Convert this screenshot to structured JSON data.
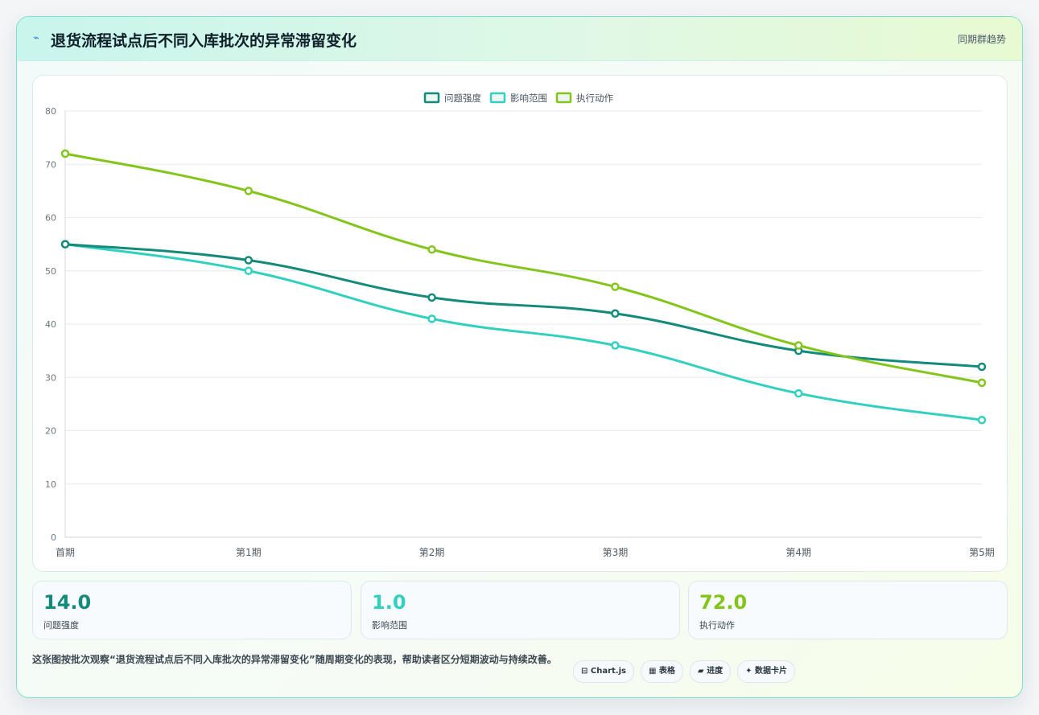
{
  "header": {
    "icon": "lightning-icon",
    "icon_glyph": "⌁",
    "title": "退货流程试点后不同入库批次的异常滞留变化",
    "subtitle": "同期群趋势"
  },
  "chart_data": {
    "type": "line",
    "title": "",
    "xlabel": "",
    "ylabel": "",
    "categories": [
      "首期",
      "第1期",
      "第2期",
      "第3期",
      "第4期",
      "第5期"
    ],
    "ylim": [
      0,
      80
    ],
    "yticks": [
      0,
      10,
      20,
      30,
      40,
      50,
      60,
      70,
      80
    ],
    "grid": true,
    "legend_position": "top-center",
    "series": [
      {
        "name": "问题强度",
        "color": "#138a7a",
        "values": [
          55,
          52,
          45,
          42,
          35,
          32
        ]
      },
      {
        "name": "影响范围",
        "color": "#33d0c0",
        "values": [
          55,
          50,
          41,
          36,
          27,
          22
        ]
      },
      {
        "name": "执行动作",
        "color": "#84c51c",
        "values": [
          72,
          65,
          54,
          47,
          36,
          29
        ]
      }
    ]
  },
  "stats": [
    {
      "value": "14.0",
      "label": "问题强度",
      "color": "#138a7a"
    },
    {
      "value": "1.0",
      "label": "影响范围",
      "color": "#33d0c0"
    },
    {
      "value": "72.0",
      "label": "执行动作",
      "color": "#84c51c"
    }
  ],
  "footer": {
    "description": "这张图按批次观察“退货流程试点后不同入库批次的异常滞留变化”随周期变化的表现，帮助读者区分短期波动与持续改善。",
    "tags": [
      {
        "icon": "chart-icon",
        "label": "⊟ Chart.js"
      },
      {
        "icon": "table-icon",
        "label": "▦ 表格"
      },
      {
        "icon": "progress-icon",
        "label": "▰ 进度"
      },
      {
        "icon": "card-icon",
        "label": "✦ 数据卡片"
      }
    ]
  }
}
